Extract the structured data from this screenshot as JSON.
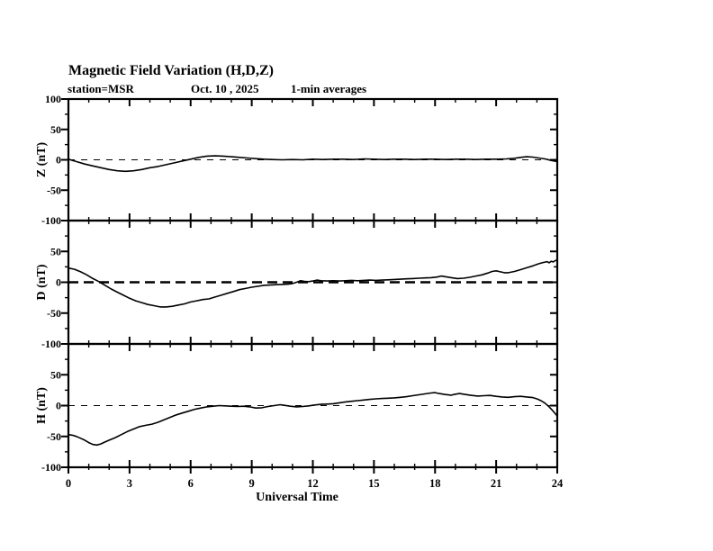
{
  "page": {
    "title": "Magnetic Field Variation (H,D,Z)",
    "subtitle": {
      "station": "station=MSR",
      "date": "Oct. 10 , 2025",
      "cadence": "1-min averages"
    }
  },
  "colors": {
    "foreground": "#000000",
    "background": "#ffffff"
  },
  "chart_data": {
    "type": "line",
    "title": "Magnetic Field Variation (H,D,Z)",
    "xlabel": "Universal Time",
    "xlim": [
      0,
      24
    ],
    "x_ticks_major": [
      0,
      3,
      6,
      9,
      12,
      15,
      18,
      21,
      24
    ],
    "x_minor_step_hours": 1,
    "grid": false,
    "legend": "none",
    "panels": [
      {
        "name": "Z",
        "ylabel": "Z (nT)",
        "ylim": [
          -100,
          100
        ],
        "ytick_labels": [
          "100",
          "50",
          "0",
          "-50",
          "-100"
        ],
        "y_major_step": 50,
        "y_minor_step": 25,
        "zero_line": "thin-dashed",
        "units": "nT",
        "series": [
          [
            0,
            1
          ],
          [
            0.4,
            -3
          ],
          [
            0.8,
            -7
          ],
          [
            1.2,
            -10
          ],
          [
            1.6,
            -13
          ],
          [
            2.0,
            -16
          ],
          [
            2.4,
            -18
          ],
          [
            2.8,
            -19
          ],
          [
            3.2,
            -18
          ],
          [
            3.6,
            -16
          ],
          [
            4.0,
            -13
          ],
          [
            4.4,
            -11
          ],
          [
            4.8,
            -8
          ],
          [
            5.2,
            -5
          ],
          [
            5.6,
            -2
          ],
          [
            6.0,
            1
          ],
          [
            6.4,
            4
          ],
          [
            6.8,
            6
          ],
          [
            7.2,
            6.5
          ],
          [
            7.6,
            6
          ],
          [
            8.0,
            5
          ],
          [
            8.4,
            4
          ],
          [
            8.8,
            3
          ],
          [
            9.2,
            2
          ],
          [
            9.6,
            1
          ],
          [
            10.0,
            0.5
          ],
          [
            10.5,
            0
          ],
          [
            11.0,
            0.5
          ],
          [
            11.5,
            0
          ],
          [
            12.0,
            1
          ],
          [
            12.5,
            0.5
          ],
          [
            13.0,
            1
          ],
          [
            13.5,
            1
          ],
          [
            14.0,
            0.5
          ],
          [
            14.5,
            1.5
          ],
          [
            15.0,
            1
          ],
          [
            15.5,
            0.5
          ],
          [
            16.0,
            1
          ],
          [
            16.5,
            1
          ],
          [
            17.0,
            0.5
          ],
          [
            17.5,
            1
          ],
          [
            18.0,
            1
          ],
          [
            18.5,
            0.5
          ],
          [
            19.0,
            1
          ],
          [
            19.5,
            1
          ],
          [
            20.0,
            0.5
          ],
          [
            20.5,
            1
          ],
          [
            21.0,
            1
          ],
          [
            21.5,
            1.5
          ],
          [
            21.9,
            2.5
          ],
          [
            22.2,
            4
          ],
          [
            22.5,
            5
          ],
          [
            22.8,
            4.5
          ],
          [
            23.1,
            3
          ],
          [
            23.4,
            1.5
          ],
          [
            23.7,
            -1
          ],
          [
            24,
            -3
          ]
        ]
      },
      {
        "name": "D",
        "ylabel": "D (nT)",
        "ylim": [
          -100,
          100
        ],
        "ytick_labels": [
          "50",
          "0",
          "-50",
          "-100"
        ],
        "y_major_step": 50,
        "y_minor_step": 25,
        "zero_line": "bold-dashed",
        "units": "nT",
        "series": [
          [
            0,
            23
          ],
          [
            0.3,
            21
          ],
          [
            0.6,
            17
          ],
          [
            0.9,
            12
          ],
          [
            1.2,
            6
          ],
          [
            1.5,
            1
          ],
          [
            1.8,
            -5
          ],
          [
            2.1,
            -11
          ],
          [
            2.4,
            -16
          ],
          [
            2.7,
            -21
          ],
          [
            3.0,
            -26
          ],
          [
            3.3,
            -30
          ],
          [
            3.6,
            -33
          ],
          [
            3.9,
            -36
          ],
          [
            4.2,
            -38
          ],
          [
            4.5,
            -40
          ],
          [
            4.8,
            -40
          ],
          [
            5.1,
            -39
          ],
          [
            5.4,
            -37
          ],
          [
            5.7,
            -35
          ],
          [
            6.0,
            -32
          ],
          [
            6.3,
            -30
          ],
          [
            6.6,
            -28
          ],
          [
            6.9,
            -27
          ],
          [
            7.2,
            -24
          ],
          [
            7.5,
            -21
          ],
          [
            7.8,
            -18
          ],
          [
            8.1,
            -15
          ],
          [
            8.4,
            -12
          ],
          [
            8.7,
            -10
          ],
          [
            9.0,
            -8
          ],
          [
            9.3,
            -6.5
          ],
          [
            9.6,
            -5
          ],
          [
            9.9,
            -4.5
          ],
          [
            10.2,
            -4
          ],
          [
            10.5,
            -3.5
          ],
          [
            10.8,
            -3
          ],
          [
            11.0,
            -2
          ],
          [
            11.2,
            0
          ],
          [
            11.4,
            2.5
          ],
          [
            11.6,
            1.5
          ],
          [
            11.8,
            1
          ],
          [
            12.0,
            2
          ],
          [
            12.2,
            3.5
          ],
          [
            12.4,
            2.5
          ],
          [
            12.7,
            2
          ],
          [
            13.0,
            2.5
          ],
          [
            13.3,
            2
          ],
          [
            13.6,
            2.5
          ],
          [
            13.9,
            3
          ],
          [
            14.2,
            2.5
          ],
          [
            14.5,
            3
          ],
          [
            14.8,
            3.5
          ],
          [
            15.1,
            3
          ],
          [
            15.4,
            3.5
          ],
          [
            15.7,
            4
          ],
          [
            16.0,
            4.5
          ],
          [
            16.3,
            5
          ],
          [
            16.6,
            5.5
          ],
          [
            16.9,
            6
          ],
          [
            17.2,
            6.5
          ],
          [
            17.5,
            7
          ],
          [
            17.8,
            7.5
          ],
          [
            18.1,
            8.5
          ],
          [
            18.3,
            10
          ],
          [
            18.5,
            9
          ],
          [
            18.8,
            7.5
          ],
          [
            19.1,
            6
          ],
          [
            19.4,
            6.5
          ],
          [
            19.7,
            8
          ],
          [
            20.0,
            10
          ],
          [
            20.3,
            12
          ],
          [
            20.6,
            15
          ],
          [
            20.8,
            17.5
          ],
          [
            21.0,
            18.5
          ],
          [
            21.2,
            17
          ],
          [
            21.4,
            15.5
          ],
          [
            21.6,
            15.5
          ],
          [
            21.9,
            17.5
          ],
          [
            22.2,
            20.5
          ],
          [
            22.5,
            23.5
          ],
          [
            22.8,
            26.5
          ],
          [
            23.1,
            30
          ],
          [
            23.3,
            32
          ],
          [
            23.5,
            33.5
          ],
          [
            23.6,
            31.5
          ],
          [
            23.7,
            34
          ],
          [
            23.8,
            33
          ],
          [
            23.9,
            35
          ],
          [
            24,
            36
          ]
        ]
      },
      {
        "name": "H",
        "ylabel": "H (nT)",
        "ylim": [
          -100,
          100
        ],
        "ytick_labels": [
          "50",
          "0",
          "-50",
          "-100"
        ],
        "y_major_step": 50,
        "y_minor_step": 25,
        "zero_line": "thin-dashed",
        "units": "nT",
        "series": [
          [
            0,
            -47
          ],
          [
            0.2,
            -48
          ],
          [
            0.4,
            -50
          ],
          [
            0.6,
            -53
          ],
          [
            0.8,
            -56
          ],
          [
            1.0,
            -60
          ],
          [
            1.2,
            -63
          ],
          [
            1.4,
            -64
          ],
          [
            1.6,
            -62
          ],
          [
            1.8,
            -59
          ],
          [
            2.0,
            -56
          ],
          [
            2.3,
            -52
          ],
          [
            2.6,
            -47
          ],
          [
            2.9,
            -42
          ],
          [
            3.2,
            -38
          ],
          [
            3.5,
            -34
          ],
          [
            3.8,
            -32
          ],
          [
            4.1,
            -30
          ],
          [
            4.4,
            -27
          ],
          [
            4.7,
            -23
          ],
          [
            5.0,
            -19
          ],
          [
            5.3,
            -15
          ],
          [
            5.6,
            -12
          ],
          [
            5.9,
            -9
          ],
          [
            6.2,
            -6
          ],
          [
            6.5,
            -4
          ],
          [
            6.8,
            -2
          ],
          [
            7.1,
            -1
          ],
          [
            7.4,
            0
          ],
          [
            7.7,
            -0.5
          ],
          [
            8.0,
            -1
          ],
          [
            8.3,
            -1.5
          ],
          [
            8.6,
            -1
          ],
          [
            8.9,
            -2
          ],
          [
            9.2,
            -4
          ],
          [
            9.5,
            -3.5
          ],
          [
            9.8,
            -1.5
          ],
          [
            10.1,
            0
          ],
          [
            10.4,
            1.5
          ],
          [
            10.6,
            0.5
          ],
          [
            10.9,
            -1
          ],
          [
            11.2,
            -2
          ],
          [
            11.5,
            -1.5
          ],
          [
            11.8,
            -0.5
          ],
          [
            12.1,
            1
          ],
          [
            12.4,
            2
          ],
          [
            12.7,
            2.5
          ],
          [
            13.0,
            3
          ],
          [
            13.3,
            4.5
          ],
          [
            13.6,
            6
          ],
          [
            13.9,
            7
          ],
          [
            14.2,
            8
          ],
          [
            14.5,
            9
          ],
          [
            14.8,
            10
          ],
          [
            15.1,
            11
          ],
          [
            15.4,
            11.5
          ],
          [
            15.7,
            12
          ],
          [
            16.0,
            12.5
          ],
          [
            16.3,
            13.5
          ],
          [
            16.6,
            14.5
          ],
          [
            16.9,
            16
          ],
          [
            17.2,
            17.5
          ],
          [
            17.5,
            19
          ],
          [
            17.8,
            20.5
          ],
          [
            18.0,
            21
          ],
          [
            18.2,
            19.5
          ],
          [
            18.5,
            18
          ],
          [
            18.8,
            17
          ],
          [
            19.0,
            18.5
          ],
          [
            19.2,
            19.5
          ],
          [
            19.5,
            18
          ],
          [
            19.8,
            16.5
          ],
          [
            20.1,
            15.5
          ],
          [
            20.4,
            16
          ],
          [
            20.7,
            16.5
          ],
          [
            21.0,
            15
          ],
          [
            21.3,
            14
          ],
          [
            21.6,
            13.5
          ],
          [
            21.9,
            14.5
          ],
          [
            22.2,
            15
          ],
          [
            22.5,
            14
          ],
          [
            22.8,
            13
          ],
          [
            23.0,
            11
          ],
          [
            23.2,
            8
          ],
          [
            23.4,
            4
          ],
          [
            23.6,
            -2
          ],
          [
            23.8,
            -9
          ],
          [
            24,
            -17
          ]
        ]
      }
    ]
  }
}
